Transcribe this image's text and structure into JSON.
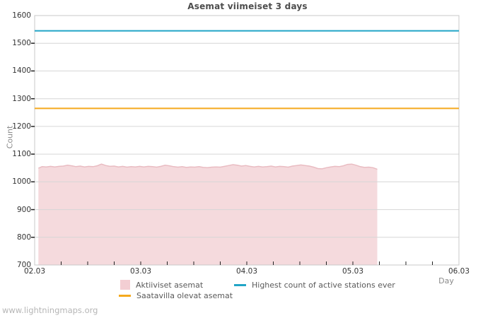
{
  "page": {
    "watermark": "www.lightningmaps.org",
    "background_color": "#ffffff"
  },
  "chart_data": {
    "type": "area",
    "title": "Asemat viimeiset 3 days",
    "xlabel": "Day",
    "ylabel": "Count",
    "ylim": [
      700,
      1600
    ],
    "y_ticks": [
      700,
      800,
      900,
      1000,
      1100,
      1200,
      1300,
      1400,
      1500,
      1600
    ],
    "x_domain_days": [
      0,
      4
    ],
    "x_ticks": [
      {
        "day": 0,
        "label": "02.03"
      },
      {
        "day": 1,
        "label": "03.03"
      },
      {
        "day": 2,
        "label": "04.03"
      },
      {
        "day": 3,
        "label": "05.03"
      },
      {
        "day": 4,
        "label": "06.03"
      }
    ],
    "x_minor_tick_step_days": 0.25,
    "grid": true,
    "grid_color": "#d6d6d6",
    "border_color": "#c8c8c8",
    "tick_color": "#222222",
    "series": [
      {
        "name": "Aktiiviset asemat",
        "type": "area",
        "fill_color": "#f5dadd",
        "edge_color": "#e9bcc2",
        "points": [
          [
            0.035,
            1049
          ],
          [
            0.07,
            1055
          ],
          [
            0.11,
            1054
          ],
          [
            0.15,
            1056
          ],
          [
            0.19,
            1054
          ],
          [
            0.23,
            1056
          ],
          [
            0.27,
            1057
          ],
          [
            0.31,
            1060
          ],
          [
            0.35,
            1058
          ],
          [
            0.39,
            1055
          ],
          [
            0.43,
            1057
          ],
          [
            0.47,
            1054
          ],
          [
            0.51,
            1056
          ],
          [
            0.55,
            1055
          ],
          [
            0.59,
            1058
          ],
          [
            0.63,
            1064
          ],
          [
            0.67,
            1059
          ],
          [
            0.71,
            1056
          ],
          [
            0.75,
            1057
          ],
          [
            0.79,
            1054
          ],
          [
            0.83,
            1056
          ],
          [
            0.87,
            1053
          ],
          [
            0.91,
            1055
          ],
          [
            0.95,
            1054
          ],
          [
            0.99,
            1056
          ],
          [
            1.03,
            1054
          ],
          [
            1.07,
            1056
          ],
          [
            1.11,
            1055
          ],
          [
            1.15,
            1053
          ],
          [
            1.19,
            1056
          ],
          [
            1.23,
            1060
          ],
          [
            1.27,
            1058
          ],
          [
            1.31,
            1055
          ],
          [
            1.35,
            1053
          ],
          [
            1.39,
            1055
          ],
          [
            1.43,
            1052
          ],
          [
            1.47,
            1054
          ],
          [
            1.51,
            1053
          ],
          [
            1.55,
            1055
          ],
          [
            1.59,
            1052
          ],
          [
            1.63,
            1051
          ],
          [
            1.67,
            1053
          ],
          [
            1.71,
            1054
          ],
          [
            1.75,
            1053
          ],
          [
            1.79,
            1056
          ],
          [
            1.83,
            1059
          ],
          [
            1.87,
            1062
          ],
          [
            1.91,
            1060
          ],
          [
            1.95,
            1057
          ],
          [
            1.99,
            1059
          ],
          [
            2.03,
            1056
          ],
          [
            2.07,
            1054
          ],
          [
            2.11,
            1056
          ],
          [
            2.15,
            1054
          ],
          [
            2.19,
            1055
          ],
          [
            2.23,
            1057
          ],
          [
            2.27,
            1054
          ],
          [
            2.31,
            1056
          ],
          [
            2.35,
            1055
          ],
          [
            2.39,
            1053
          ],
          [
            2.43,
            1057
          ],
          [
            2.47,
            1059
          ],
          [
            2.51,
            1061
          ],
          [
            2.55,
            1059
          ],
          [
            2.59,
            1057
          ],
          [
            2.63,
            1053
          ],
          [
            2.67,
            1048
          ],
          [
            2.71,
            1047
          ],
          [
            2.75,
            1051
          ],
          [
            2.79,
            1054
          ],
          [
            2.83,
            1056
          ],
          [
            2.87,
            1055
          ],
          [
            2.91,
            1058
          ],
          [
            2.95,
            1063
          ],
          [
            2.99,
            1064
          ],
          [
            3.03,
            1060
          ],
          [
            3.07,
            1055
          ],
          [
            3.11,
            1052
          ],
          [
            3.15,
            1053
          ],
          [
            3.19,
            1051
          ],
          [
            3.22,
            1047
          ],
          [
            3.23,
            1045
          ]
        ]
      },
      {
        "name": "Saatavilla olevat asemat",
        "type": "hline",
        "color": "#f5a91d",
        "value": 1265
      },
      {
        "name": "Highest count of active stations ever",
        "type": "hline",
        "color": "#21a5c7",
        "value": 1545
      }
    ],
    "legend": {
      "position": "bottom",
      "items": [
        {
          "label": "Aktiiviset asemat",
          "swatch": "square",
          "color": "#f3ced3"
        },
        {
          "label": "Highest count of active stations ever",
          "swatch": "line",
          "color": "#21a5c7"
        },
        {
          "label": "Saatavilla olevat asemat",
          "swatch": "line",
          "color": "#f5a91d"
        }
      ]
    }
  }
}
